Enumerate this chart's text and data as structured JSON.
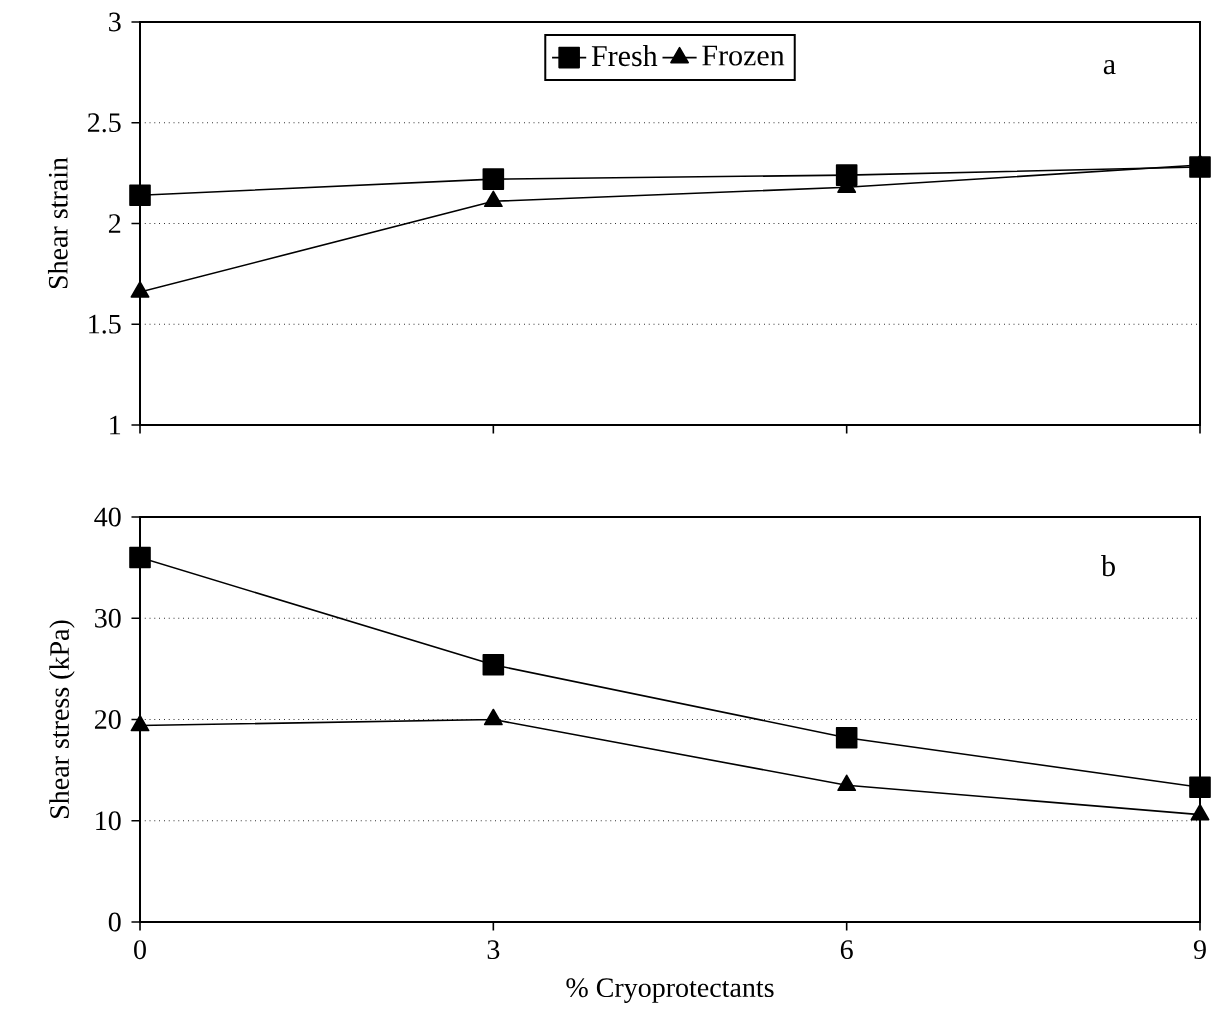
{
  "chart_data": [
    {
      "type": "line",
      "ylabel": "Shear strain",
      "x": [
        0,
        3,
        6,
        9
      ],
      "xlim": [
        0,
        9
      ],
      "xticks": [
        0,
        3,
        6,
        9
      ],
      "ylim": [
        1,
        3
      ],
      "yticks": [
        1,
        1.5,
        2,
        2.5,
        3
      ],
      "tick_labels": "y",
      "grid": "y",
      "legend": "top",
      "annotations": [
        "a"
      ],
      "series": [
        {
          "name": "Fresh",
          "color": "#000000",
          "marker": "square",
          "values": [
            2.14,
            2.22,
            2.24,
            2.28
          ]
        },
        {
          "name": "Frozen",
          "color": "#000000",
          "marker": "triangle",
          "values": [
            1.66,
            2.11,
            2.18,
            2.29
          ]
        }
      ]
    },
    {
      "type": "line",
      "ylabel": "Shear stress (kPa)",
      "xlabel": "% Cryoprotectants",
      "x": [
        0,
        3,
        6,
        9
      ],
      "xlim": [
        0,
        9
      ],
      "xticks": [
        0,
        3,
        6,
        9
      ],
      "ylim": [
        0,
        40
      ],
      "yticks": [
        0,
        10,
        20,
        30,
        40
      ],
      "grid": "y",
      "annotations": [
        "b"
      ],
      "series": [
        {
          "color": "#000000",
          "marker": "square",
          "values": [
            36,
            25.4,
            18.2,
            13.3
          ]
        },
        {
          "color": "#000000",
          "marker": "triangle",
          "values": [
            19.4,
            20,
            13.5,
            10.6
          ]
        }
      ]
    }
  ]
}
